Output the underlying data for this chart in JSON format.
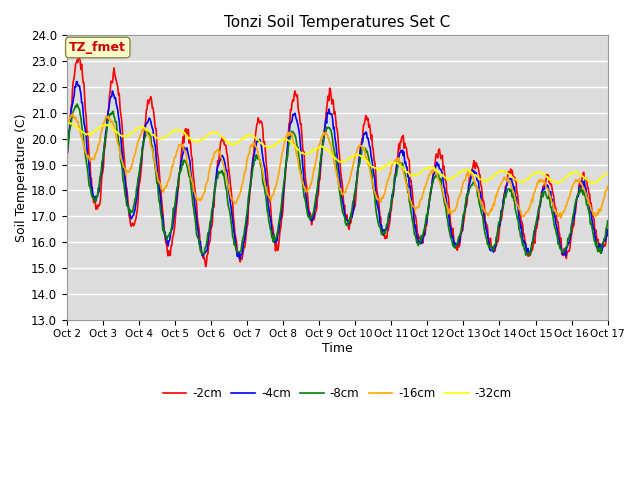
{
  "title": "Tonzi Soil Temperatures Set C",
  "xlabel": "Time",
  "ylabel": "Soil Temperature (C)",
  "ylim": [
    13.0,
    24.0
  ],
  "yticks": [
    13.0,
    14.0,
    15.0,
    16.0,
    17.0,
    18.0,
    19.0,
    20.0,
    21.0,
    22.0,
    23.0,
    24.0
  ],
  "xtick_labels": [
    "Oct 2",
    "Oct 3",
    "Oct 4",
    "Oct 5",
    "Oct 6",
    "Oct 7",
    "Oct 8",
    "Oct 9",
    "Oct 10",
    "Oct 11",
    "Oct 12",
    "Oct 13",
    "Oct 14",
    "Oct 15",
    "Oct 16",
    "Oct 17"
  ],
  "line_colors": [
    "red",
    "blue",
    "green",
    "orange",
    "yellow"
  ],
  "line_labels": [
    "-2cm",
    "-4cm",
    "-8cm",
    "-16cm",
    "-32cm"
  ],
  "background_color": "#e0e0e0",
  "annotation_text": "TZ_fmet",
  "annotation_color": "#cc0000",
  "annotation_bg": "#ffffcc",
  "annotation_border": "#888844"
}
